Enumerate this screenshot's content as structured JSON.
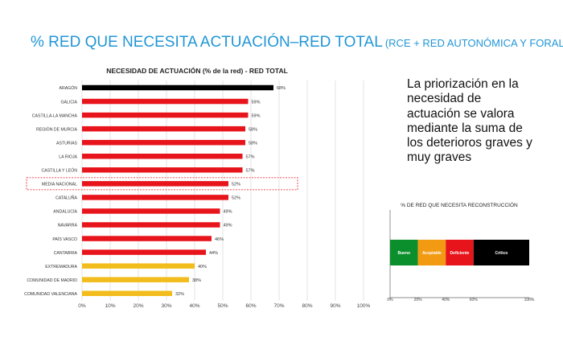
{
  "header": {
    "title": "% RED QUE NECESITA ACTUACIÓN–RED TOTAL",
    "subtitle": "(RCE + RED AUTONÓMICA Y FORAL)"
  },
  "side_text": "La priorización en la necesidad de actuación se valora mediante la suma de los deterioros graves y muy graves",
  "chart_data": [
    {
      "type": "bar",
      "orientation": "horizontal",
      "title": "NECESIDAD DE ACTUACIÓN (% de la red)  - RED TOTAL",
      "xlim": [
        0,
        100
      ],
      "x_ticks": [
        "0%",
        "10%",
        "20%",
        "30%",
        "40%",
        "50%",
        "60%",
        "70%",
        "80%",
        "90%",
        "100%"
      ],
      "grid": true,
      "categories": [
        "ARAGÓN",
        "GALICIA",
        "CASTILLA-LA MANCHA",
        "REGIÓN DE MURCIA",
        "ASTURIAS",
        "LA RIOJA",
        "CASTILLA Y LEÓN",
        "MEDIA NACIONAL",
        "CATALUÑA",
        "ANDALUCÍA",
        "NAVARRA",
        "PAÍS VASCO",
        "CANTABRIA",
        "EXTREMADURA",
        "COMUNIDAD DE MADRID",
        "COMUNIDAD VALENCIANA"
      ],
      "values": [
        68,
        59,
        59,
        58,
        58,
        57,
        57,
        52,
        52,
        49,
        49,
        46,
        44,
        40,
        38,
        32
      ],
      "value_labels": [
        "68%",
        "59%",
        "59%",
        "58%",
        "58%",
        "57%",
        "57%",
        "52%",
        "52%",
        "49%",
        "49%",
        "46%",
        "44%",
        "40%",
        "38%",
        "32%"
      ],
      "bar_colors": [
        "#000000",
        "#e8141b",
        "#e8141b",
        "#e8141b",
        "#e8141b",
        "#e8141b",
        "#e8141b",
        "#e8141b",
        "#e8141b",
        "#e8141b",
        "#e8141b",
        "#e8141b",
        "#e8141b",
        "#f2bd1c",
        "#f2bd1c",
        "#f2bd1c"
      ],
      "highlight": "MEDIA NACIONAL",
      "highlight_color": "#e8141b"
    },
    {
      "type": "bar",
      "orientation": "horizontal",
      "stacked": true,
      "title": "% DE RED QUE NECESITA RECONSTRUCCIÓN",
      "xlim": [
        0,
        100
      ],
      "x_ticks": [
        "0%",
        "20%",
        "40%",
        "60%",
        "100%"
      ],
      "x_tick_values": [
        0,
        20,
        40,
        60,
        100
      ],
      "segments": [
        {
          "name": "Bueno",
          "from": 0,
          "to": 20,
          "color": "#0a8f2c"
        },
        {
          "name": "Aceptable",
          "from": 20,
          "to": 40,
          "color": "#f29a12"
        },
        {
          "name": "Deficiente",
          "from": 40,
          "to": 60,
          "color": "#e8141b"
        },
        {
          "name": "Crítico",
          "from": 60,
          "to": 100,
          "color": "#000000"
        }
      ]
    }
  ]
}
